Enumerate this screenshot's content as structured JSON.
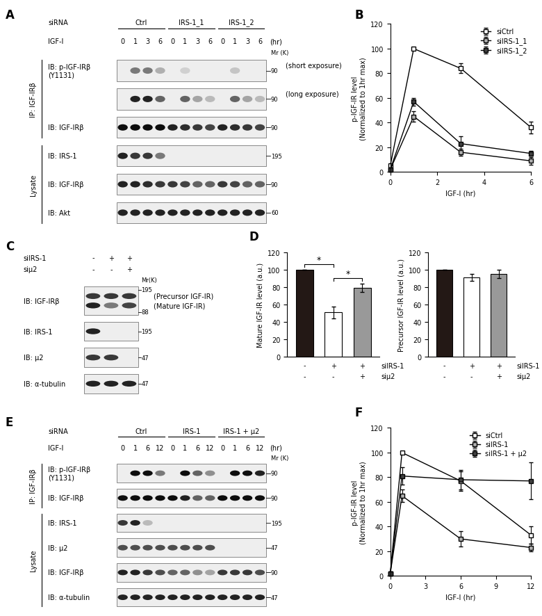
{
  "chart_data": [
    {
      "panel": "B",
      "type": "line",
      "xlabel": "IGF-I (hr)",
      "ylabel": "p-IGF-IR level\n(Normalized to 1hr max)",
      "x": [
        0,
        1,
        3,
        6
      ],
      "xlim": [
        0,
        6
      ],
      "xticks": [
        0,
        2,
        4,
        6
      ],
      "ylim": [
        0,
        120
      ],
      "yticks": [
        0,
        20,
        40,
        60,
        80,
        100,
        120
      ],
      "legend": "upper right",
      "series": [
        {
          "name": "siCtrl",
          "color": "#ffffff",
          "marker": "square",
          "values": [
            5,
            100,
            84,
            36
          ],
          "errors": [
            0,
            0,
            4,
            5
          ]
        },
        {
          "name": "siIRS-1_1",
          "color": "#b0b0b0",
          "marker": "square",
          "values": [
            2,
            45,
            16,
            9
          ],
          "errors": [
            1,
            4,
            3,
            3
          ]
        },
        {
          "name": "siIRS-1_2",
          "color": "#404040",
          "marker": "square",
          "values": [
            2,
            57,
            23,
            15
          ],
          "errors": [
            1,
            3,
            6,
            2
          ]
        }
      ]
    },
    {
      "panel": "D",
      "type": "bar",
      "ylabel": "Mature IGF-IR level (a.u.)",
      "categories": [
        null,
        null,
        null
      ],
      "values": [
        100,
        51,
        79
      ],
      "errors": [
        0,
        7,
        5
      ],
      "colors": [
        "#231815",
        "#ffffff",
        "#999999"
      ],
      "ylim": [
        0,
        120
      ],
      "yticks": [
        0,
        20,
        40,
        60,
        80,
        100,
        120
      ],
      "conditions": [
        {
          "label": "siIRS-1",
          "values": [
            "-",
            "+",
            "+"
          ]
        },
        {
          "label": "siμ2",
          "values": [
            "-",
            "-",
            "+"
          ]
        }
      ],
      "significance": [
        {
          "pair": [
            0,
            1
          ],
          "label": "*"
        },
        {
          "pair": [
            1,
            2
          ],
          "label": "*"
        }
      ]
    },
    {
      "type": "bar",
      "ylabel": "Precursor IGF-IR level (a.u.)",
      "categories": [
        null,
        null,
        null
      ],
      "values": [
        100,
        91,
        95
      ],
      "errors": [
        0,
        4,
        5
      ],
      "colors": [
        "#231815",
        "#ffffff",
        "#999999"
      ],
      "ylim": [
        0,
        120
      ],
      "yticks": [
        0,
        20,
        40,
        60,
        80,
        100,
        120
      ],
      "conditions": [
        {
          "label": "siIRS-1",
          "values": [
            "-",
            "+",
            "+"
          ]
        },
        {
          "label": "siμ2",
          "values": [
            "-",
            "-",
            "+"
          ]
        }
      ]
    },
    {
      "panel": "F",
      "type": "line",
      "xlabel": "IGF-I (hr)",
      "ylabel": "p-IGF-IR level\n(Normalized to 1hr max)",
      "x": [
        0,
        1,
        6,
        12
      ],
      "xlim": [
        0,
        12
      ],
      "xticks": [
        0,
        3,
        6,
        9,
        12
      ],
      "ylim": [
        0,
        120
      ],
      "yticks": [
        0,
        20,
        40,
        60,
        80,
        100,
        120
      ],
      "legend": "upper right",
      "series": [
        {
          "name": "siCtrl",
          "color": "#ffffff",
          "marker": "square",
          "values": [
            2,
            100,
            77,
            33
          ],
          "errors": [
            0,
            0,
            8,
            7
          ]
        },
        {
          "name": "siIRS-1",
          "color": "#b0b0b0",
          "marker": "square",
          "values": [
            2,
            65,
            30,
            23
          ],
          "errors": [
            0,
            5,
            6,
            3
          ]
        },
        {
          "name": "siIRS-1 + μ2",
          "color": "#404040",
          "marker": "square",
          "values": [
            2,
            81,
            78,
            77
          ],
          "errors": [
            0,
            7,
            8,
            15
          ]
        }
      ]
    }
  ],
  "blots": [
    {
      "panel": "A",
      "header": {
        "label": "siRNA",
        "groups": [
          "Ctrl",
          "IRS-1_1",
          "IRS-1_2"
        ]
      },
      "time": {
        "label": "IGF-I",
        "values": [
          0,
          1,
          3,
          6
        ],
        "unit": "(hr)"
      },
      "marker_title": "Mr (K)",
      "sections": [
        {
          "label": "IP: IGF-IRβ",
          "rows": [
            0,
            2
          ]
        },
        {
          "label": "Lysate",
          "rows": [
            3,
            5
          ]
        }
      ],
      "rows": [
        {
          "label": "IB: p-IGF-IRβ\n(Y1131)",
          "note": "(short exposure)",
          "markers": [
            90
          ],
          "tracks": [
            {
              "values": [
                0,
                0.5,
                0.5,
                0.25,
                0,
                0.1,
                0,
                0,
                0,
                0.15,
                0,
                0
              ]
            }
          ]
        },
        {
          "note": "(long exposure)",
          "markers": [
            90
          ],
          "tracks": [
            {
              "values": [
                0,
                0.9,
                0.9,
                0.6,
                0,
                0.6,
                0.3,
                0.2,
                0,
                0.6,
                0.3,
                0.2
              ]
            }
          ]
        },
        {
          "label": "IB: IGF-IRβ",
          "markers": [
            90
          ],
          "tracks": [
            {
              "values": [
                1,
                1,
                1,
                1,
                0.9,
                0.85,
                0.8,
                0.75,
                0.9,
                0.85,
                0.8,
                0.75
              ]
            }
          ]
        },
        {
          "label": "IB: IRS-1",
          "markers": [
            195
          ],
          "tracks": [
            {
              "values": [
                0.9,
                0.8,
                0.8,
                0.5,
                0,
                0,
                0,
                0,
                0,
                0,
                0,
                0
              ]
            }
          ]
        },
        {
          "label": "IB: IGF-IRβ",
          "markers": [
            90
          ],
          "tracks": [
            {
              "values": [
                0.9,
                0.9,
                0.85,
                0.8,
                0.8,
                0.75,
                0.6,
                0.6,
                0.8,
                0.75,
                0.6,
                0.6
              ]
            }
          ]
        },
        {
          "label": "IB: Akt",
          "markers": [
            60
          ],
          "tracks": [
            {
              "values": [
                0.9,
                0.9,
                0.9,
                0.9,
                0.9,
                0.9,
                0.9,
                0.9,
                0.9,
                0.9,
                0.9,
                0.9
              ]
            }
          ]
        }
      ]
    },
    {
      "panel": "C",
      "conditions": [
        {
          "label": "siIRS-1",
          "values": [
            "-",
            "+",
            "+"
          ]
        },
        {
          "label": "siμ2",
          "values": [
            "-",
            "-",
            "+"
          ]
        }
      ],
      "marker_title": "Mr(K)",
      "rows": [
        {
          "label": "IB: IGF-IRβ",
          "markers": [
            195,
            88
          ],
          "tracks": [
            {
              "name": "(Precursor IGF-IR)",
              "values": [
                0.8,
                0.8,
                0.8
              ]
            },
            {
              "name": "(Mature IGF-IR)",
              "values": [
                0.9,
                0.5,
                0.75
              ]
            }
          ]
        },
        {
          "label": "IB: IRS-1",
          "markers": [
            195
          ],
          "tracks": [
            {
              "values": [
                0.9,
                0,
                0
              ]
            }
          ]
        },
        {
          "label": "IB: μ2",
          "markers": [
            47
          ],
          "tracks": [
            {
              "values": [
                0.8,
                0.8,
                0
              ]
            }
          ]
        },
        {
          "label": "IB: α-tubulin",
          "markers": [
            47
          ],
          "tracks": [
            {
              "values": [
                0.9,
                0.9,
                0.9
              ]
            }
          ]
        }
      ]
    },
    {
      "panel": "E",
      "header": {
        "label": "siRNA",
        "groups": [
          "Ctrl",
          "IRS-1",
          "IRS-1 + μ2"
        ]
      },
      "time": {
        "label": "IGF-I",
        "values": [
          0,
          1,
          6,
          12
        ],
        "unit": "(hr)"
      },
      "marker_title": "Mr (K)",
      "sections": [
        {
          "label": "IP: IGF-IRβ",
          "rows": [
            0,
            1
          ]
        },
        {
          "label": "Lysate",
          "rows": [
            2,
            5
          ]
        }
      ],
      "rows": [
        {
          "label": "IB: p-IGF-IRβ\n(Y1131)",
          "markers": [
            90
          ],
          "tracks": [
            {
              "values": [
                0,
                1,
                1,
                0.5,
                0,
                1,
                0.6,
                0.4,
                0,
                1,
                1,
                0.9
              ]
            }
          ]
        },
        {
          "label": "IB: IGF-IRβ",
          "markers": [
            90
          ],
          "tracks": [
            {
              "values": [
                1,
                1,
                1,
                1,
                1,
                0.9,
                0.6,
                0.6,
                1,
                1,
                1,
                1
              ]
            }
          ]
        },
        {
          "label": "IB: IRS-1",
          "markers": [
            195
          ],
          "tracks": [
            {
              "values": [
                0.8,
                0.9,
                0.2,
                0,
                0,
                0,
                0,
                0,
                0,
                0,
                0,
                0
              ]
            }
          ]
        },
        {
          "label": "IB: μ2",
          "markers": [
            47
          ],
          "tracks": [
            {
              "values": [
                0.7,
                0.7,
                0.7,
                0.7,
                0.7,
                0.7,
                0.7,
                0.7,
                0,
                0,
                0,
                0
              ]
            }
          ]
        },
        {
          "label": "IB: IGF-IRβ",
          "markers": [
            90
          ],
          "tracks": [
            {
              "values": [
                0.9,
                0.9,
                0.8,
                0.7,
                0.6,
                0.6,
                0.4,
                0.3,
                0.8,
                0.8,
                0.8,
                0.7
              ]
            }
          ]
        },
        {
          "label": "IB: α-tubulin",
          "markers": [
            47
          ],
          "tracks": [
            {
              "values": [
                0.9,
                0.9,
                0.9,
                0.9,
                0.9,
                0.9,
                0.9,
                0.9,
                0.9,
                0.9,
                0.9,
                0.9
              ]
            }
          ]
        }
      ]
    }
  ]
}
